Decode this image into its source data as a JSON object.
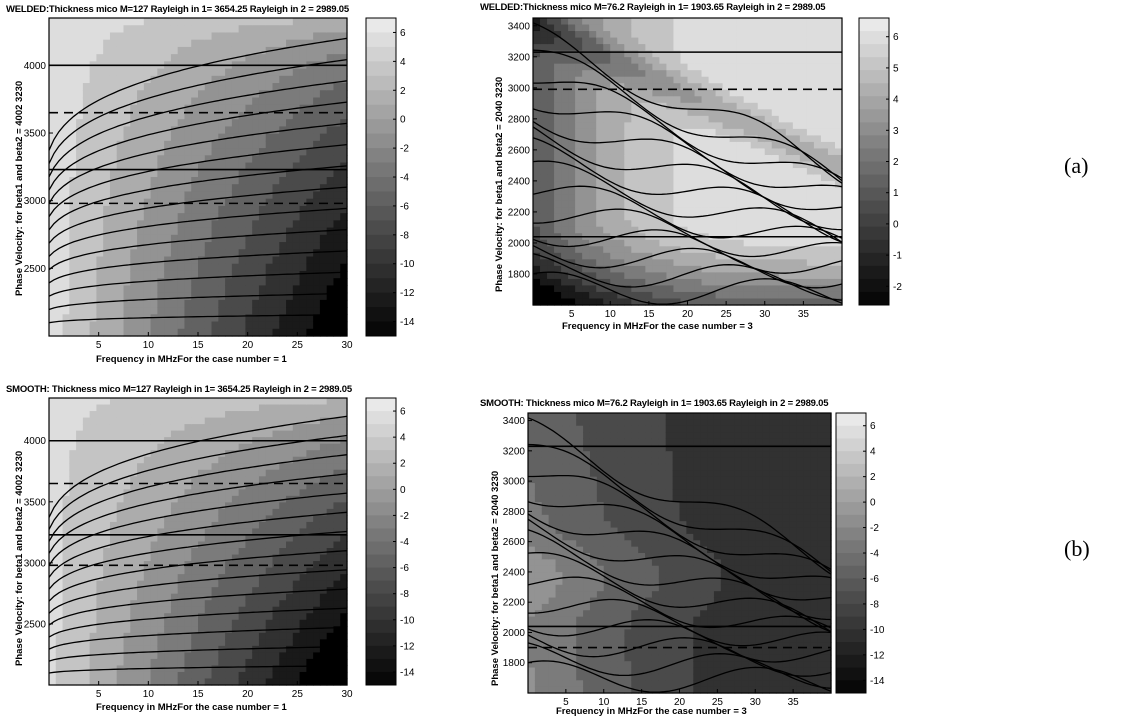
{
  "side_labels": {
    "a": "(a)",
    "b": "(b)"
  },
  "chart_data": [
    {
      "type": "heatmap",
      "panel": "welded-127",
      "title": "WELDED:Thickness mico M=127   Rayleigh in 1= 3654.25   Rayleigh in 2 = 2989.05",
      "xlabel": "Frequency in MHzFor the case number = 1",
      "ylabel": "Phase Velocity: for beta1 and beta2 =    4002  3230",
      "xlim": [
        0,
        30
      ],
      "ylim": [
        2000,
        4350
      ],
      "xticks": [
        5,
        10,
        15,
        20,
        25,
        30
      ],
      "yticks": [
        2500,
        3000,
        3500,
        4000
      ],
      "colorbar_ticks": [
        6,
        4,
        2,
        0,
        -2,
        -4,
        -6,
        -8,
        -10,
        -12,
        -14
      ],
      "colorbar_range": [
        -15,
        7
      ],
      "dashed_lines": [
        3650,
        2980
      ],
      "solid_lines": [
        4000,
        3230
      ]
    },
    {
      "type": "heatmap",
      "panel": "welded-76",
      "title": "WELDED:Thickness mico M=76.2   Rayleigh in 1= 1903.65   Rayleigh in 2 = 2989.05",
      "xlabel": "Frequency in MHzFor the case number = 3",
      "ylabel": "Phase Velocity: for beta1 and beta2 =    2040  3230",
      "xlim": [
        0,
        40
      ],
      "ylim": [
        1600,
        3450
      ],
      "xticks": [
        5,
        10,
        15,
        20,
        25,
        30,
        35
      ],
      "yticks": [
        1800,
        2000,
        2200,
        2400,
        2600,
        2800,
        3000,
        3200,
        3400
      ],
      "colorbar_ticks": [
        6,
        5,
        4,
        3,
        2,
        1,
        0,
        -1,
        -2
      ],
      "colorbar_range": [
        -2.6,
        6.6
      ],
      "dashed_lines": [
        2990
      ],
      "solid_lines": [
        3230,
        2040
      ]
    },
    {
      "type": "heatmap",
      "panel": "smooth-127",
      "title": "SMOOTH: Thickness mico M=127   Rayleigh in 1= 3654.25   Rayleigh in 2 = 2989.05",
      "xlabel": "Frequency in MHzFor the case number = 1",
      "ylabel": "Phase Velocity: for beta1 and beta2 =    4002  3230",
      "xlim": [
        0,
        30
      ],
      "ylim": [
        2000,
        4350
      ],
      "xticks": [
        5,
        10,
        15,
        20,
        25,
        30
      ],
      "yticks": [
        2500,
        3000,
        3500,
        4000
      ],
      "colorbar_ticks": [
        6,
        4,
        2,
        0,
        -2,
        -4,
        -6,
        -8,
        -10,
        -12,
        -14
      ],
      "colorbar_range": [
        -15,
        7
      ],
      "dashed_lines": [
        3650,
        2980
      ],
      "solid_lines": [
        4000,
        3230
      ]
    },
    {
      "type": "heatmap",
      "panel": "smooth-76",
      "title": "SMOOTH: Thickness mico M=76.2   Rayleigh in 1= 1903.65   Rayleigh in 2 = 2989.05",
      "xlabel": "Frequency in MHzFor the case number = 3",
      "ylabel": "Phase Velocity: for beta1 and beta2 =    2040  3230",
      "xlim": [
        0,
        40
      ],
      "ylim": [
        1600,
        3450
      ],
      "xticks": [
        5,
        10,
        15,
        20,
        25,
        30,
        35
      ],
      "yticks": [
        1800,
        2000,
        2200,
        2400,
        2600,
        2800,
        3000,
        3200,
        3400
      ],
      "colorbar_ticks": [
        6,
        4,
        2,
        0,
        -2,
        -4,
        -6,
        -8,
        -10,
        -12,
        -14
      ],
      "colorbar_range": [
        -15,
        7
      ],
      "dashed_lines": [
        1900
      ],
      "solid_lines": [
        3230,
        2040
      ]
    }
  ]
}
